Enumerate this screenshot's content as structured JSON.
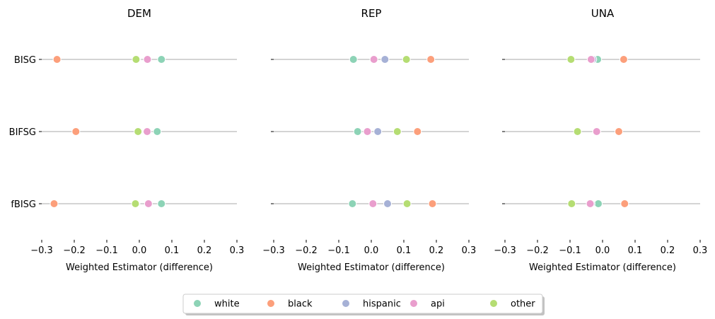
{
  "chart_data": {
    "type": "scatter",
    "xlabel": "Weighted Estimator (difference)",
    "xlim": [
      -0.3,
      0.3
    ],
    "xticks": [
      "−0.3",
      "−0.2",
      "−0.1",
      "0.0",
      "0.1",
      "0.2",
      "0.3"
    ],
    "xtick_values": [
      -0.3,
      -0.2,
      -0.1,
      0.0,
      0.1,
      0.2,
      0.3
    ],
    "rows": [
      "BISG",
      "BIFSG",
      "fBISG"
    ],
    "series_colors": {
      "white": "#8dd3b6",
      "black": "#fc9f7b",
      "hispanic": "#a6b1d6",
      "api": "#e99ecd",
      "other": "#b5dd73"
    },
    "legend": [
      "white",
      "black",
      "hispanic",
      "api",
      "other"
    ],
    "panels": [
      {
        "title": "DEM",
        "points": {
          "BISG": {
            "white": 0.068,
            "black": -0.253,
            "hispanic": -0.008,
            "api": 0.025,
            "other": -0.01
          },
          "BIFSG": {
            "white": 0.055,
            "black": -0.195,
            "hispanic": -0.002,
            "api": 0.024,
            "other": -0.004
          },
          "fBISG": {
            "white": 0.068,
            "black": -0.262,
            "hispanic": -0.01,
            "api": 0.028,
            "other": -0.012
          }
        }
      },
      {
        "title": "REP",
        "points": {
          "BISG": {
            "white": -0.055,
            "black": 0.183,
            "hispanic": 0.042,
            "api": 0.008,
            "other": 0.108
          },
          "BIFSG": {
            "white": -0.042,
            "black": 0.142,
            "hispanic": 0.02,
            "api": -0.012,
            "other": 0.08
          },
          "fBISG": {
            "white": -0.058,
            "black": 0.188,
            "hispanic": 0.05,
            "api": 0.005,
            "other": 0.11
          }
        }
      },
      {
        "title": "UNA",
        "points": {
          "BISG": {
            "white": -0.015,
            "black": 0.065,
            "hispanic": -0.03,
            "api": -0.035,
            "other": -0.097
          },
          "BIFSG": {
            "white": -0.018,
            "black": 0.05,
            "hispanic": -0.018,
            "api": -0.018,
            "other": -0.077
          },
          "fBISG": {
            "white": -0.013,
            "black": 0.068,
            "hispanic": -0.035,
            "api": -0.038,
            "other": -0.095
          }
        }
      }
    ]
  }
}
